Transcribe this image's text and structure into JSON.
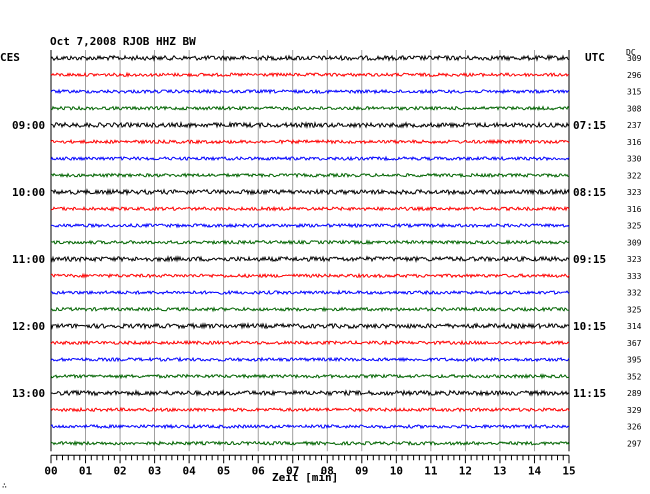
{
  "chart_data": {
    "type": "line",
    "title": "Oct 7,2008   RJOB HHZ BW",
    "left_label": "CES",
    "right_label": "UTC",
    "dc_label": "DC",
    "xlabel": "Zeit [min]",
    "xlim": [
      0,
      15
    ],
    "x_ticks": [
      "00",
      "01",
      "02",
      "03",
      "04",
      "05",
      "06",
      "07",
      "08",
      "09",
      "10",
      "11",
      "12",
      "13",
      "14",
      "15"
    ],
    "left_time_labels": [
      {
        "trace": 4,
        "text": "09:00"
      },
      {
        "trace": 8,
        "text": "10:00"
      },
      {
        "trace": 12,
        "text": "11:00"
      },
      {
        "trace": 16,
        "text": "12:00"
      },
      {
        "trace": 20,
        "text": "13:00"
      }
    ],
    "right_time_labels": [
      {
        "trace": 4,
        "text": "07:15"
      },
      {
        "trace": 8,
        "text": "08:15"
      },
      {
        "trace": 12,
        "text": "09:15"
      },
      {
        "trace": 16,
        "text": "10:15"
      },
      {
        "trace": 20,
        "text": "11:15"
      }
    ],
    "trace_colors": [
      "#000000",
      "#ff0000",
      "#0000ff",
      "#006400"
    ],
    "dc_values": [
      "309",
      "296",
      "315",
      "308",
      "237",
      "316",
      "330",
      "322",
      "323",
      "316",
      "325",
      "309",
      "323",
      "333",
      "332",
      "325",
      "314",
      "367",
      "395",
      "352",
      "289",
      "329",
      "326",
      "297"
    ],
    "grid": true,
    "corner_mark": "∴"
  }
}
